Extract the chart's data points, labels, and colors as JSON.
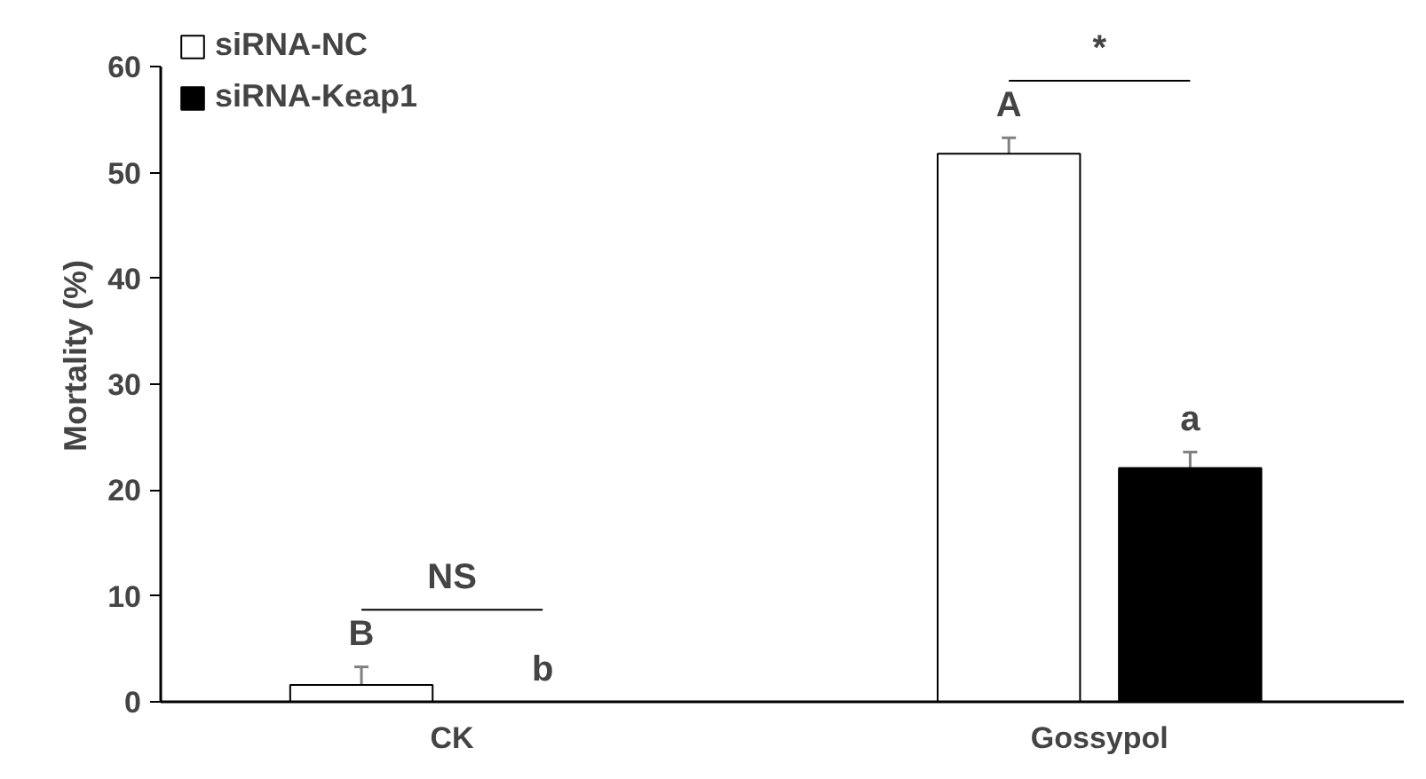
{
  "chart_data": {
    "type": "bar",
    "ylabel": "Mortality (%)",
    "categories": [
      "CK",
      "Gossypol"
    ],
    "series": [
      {
        "name": "siRNA-NC",
        "color": "#ffffff",
        "values": [
          1.6,
          51.8
        ],
        "errors": [
          1.7,
          1.5
        ],
        "value_labels": [
          "B",
          "A"
        ]
      },
      {
        "name": "siRNA-Keap1",
        "color": "#000000",
        "values": [
          0,
          22.1
        ],
        "errors": [
          null,
          1.5
        ],
        "value_labels": [
          "b",
          "a"
        ]
      }
    ],
    "annotations": [
      "NS",
      "*"
    ],
    "ylim": [
      0,
      60
    ],
    "yticks": [
      0,
      10,
      20,
      30,
      40,
      50,
      60
    ],
    "grid": false,
    "legend": "top left"
  }
}
